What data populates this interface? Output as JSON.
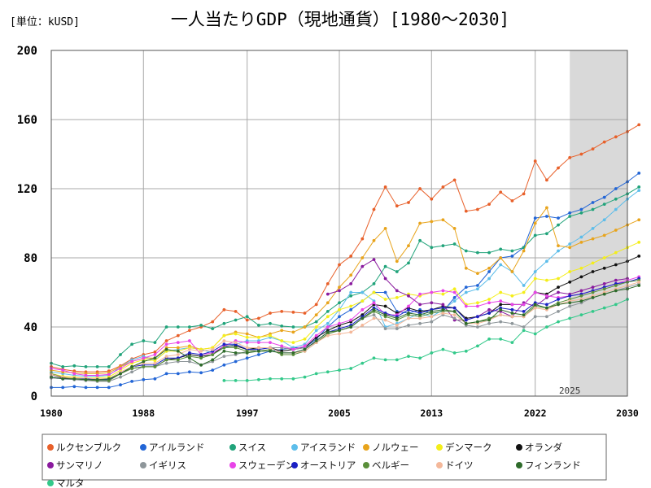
{
  "chart_data": {
    "type": "line",
    "title": "一人当たりGDP（現地通貨）[1980～2030]",
    "unit_label": "[単位：kUSD]",
    "xlim": [
      1980,
      2030
    ],
    "ylim": [
      0,
      200
    ],
    "x_ticks": [
      1980,
      1988,
      1997,
      2005,
      2013,
      2022,
      2030
    ],
    "y_ticks": [
      0,
      40,
      80,
      120,
      160,
      200
    ],
    "forecast_start": 2025,
    "forecast_label": "2025",
    "grid": true,
    "legend_position": "bottom",
    "series": [
      {
        "name": "ルクセンブルク",
        "color": "#e8602a",
        "start": 1980,
        "values": [
          17,
          15.5,
          14.5,
          14,
          14,
          14.5,
          17.5,
          21.5,
          24,
          25.5,
          32,
          35,
          38,
          40,
          43,
          50,
          49,
          44,
          45,
          48,
          49,
          48.5,
          48,
          53,
          65,
          76,
          81,
          91,
          108,
          121,
          110,
          112,
          120,
          114,
          121,
          125,
          107,
          108,
          111,
          118,
          113,
          117,
          136,
          125,
          132,
          138,
          140,
          143,
          147,
          150,
          153,
          157
        ]
      },
      {
        "name": "アイルランド",
        "color": "#2265d6",
        "start": 1980,
        "values": [
          5,
          5,
          5.5,
          5,
          5,
          5,
          6.5,
          8.5,
          9.5,
          10,
          13,
          13,
          14,
          13.5,
          15,
          18,
          20,
          22,
          24,
          26,
          27,
          28,
          28,
          33,
          40,
          46,
          50,
          55,
          60,
          60,
          49,
          48,
          50,
          48,
          49,
          57,
          63,
          64,
          72,
          80,
          81,
          86,
          103,
          104,
          103,
          106,
          108,
          112,
          115,
          120,
          124,
          129
        ]
      },
      {
        "name": "スイス",
        "color": "#20a37a",
        "start": 1980,
        "values": [
          19,
          17,
          17.5,
          17,
          17,
          17,
          24,
          30,
          32,
          31,
          40,
          40,
          40,
          41,
          39,
          42,
          44,
          46,
          41,
          42,
          40.5,
          40,
          40,
          43,
          49,
          54,
          58,
          60,
          65,
          75,
          72,
          77,
          90,
          86,
          87,
          88,
          84,
          83,
          83,
          85,
          84,
          86,
          93,
          94,
          99,
          104,
          106,
          108,
          111,
          114,
          117,
          121
        ]
      },
      {
        "name": "アイスランド",
        "color": "#5cbdea",
        "start": 1980,
        "values": [
          14,
          13,
          12,
          11.5,
          11.5,
          12,
          17,
          21,
          23,
          21,
          26,
          27,
          28,
          27,
          25,
          28,
          30,
          32,
          32,
          34,
          32,
          28,
          30,
          38,
          42,
          50,
          60,
          60,
          55,
          40,
          42,
          45,
          48,
          46,
          50,
          55,
          60,
          62,
          68,
          76,
          72,
          64,
          72,
          78,
          84,
          88,
          92,
          97,
          102,
          108,
          114,
          119
        ]
      },
      {
        "name": "ノルウェー",
        "color": "#e8a41c",
        "start": 1980,
        "values": [
          15,
          14,
          13.5,
          13,
          13,
          13.5,
          17,
          20,
          22,
          22,
          28,
          28,
          29,
          27,
          28,
          35,
          37,
          36,
          34,
          36,
          38,
          37,
          40,
          47,
          54,
          63,
          70,
          80,
          90,
          97,
          78,
          87,
          100,
          101,
          102,
          97,
          74,
          71,
          74,
          80,
          72,
          84,
          100,
          109,
          87,
          86,
          89,
          91,
          93,
          96,
          99,
          102
        ]
      },
      {
        "name": "デンマーク",
        "color": "#f4ee1a",
        "start": 1980,
        "values": [
          13,
          11.5,
          11,
          10.5,
          10.5,
          11,
          15,
          19,
          21,
          20.5,
          26,
          26,
          28,
          27,
          28,
          35,
          36,
          34,
          34,
          35,
          32,
          31,
          33,
          40,
          46,
          50,
          52,
          55,
          60,
          56,
          57,
          59,
          58,
          60,
          59,
          62,
          53,
          54,
          56,
          60,
          58,
          60,
          68,
          67,
          68,
          72,
          74,
          77,
          80,
          83,
          86,
          89
        ]
      },
      {
        "name": "オランダ",
        "color": "#111111",
        "start": 1980,
        "values": [
          12.5,
          10.5,
          10,
          9.5,
          9,
          9,
          13,
          16,
          17,
          17,
          21,
          22,
          24,
          23,
          24,
          29,
          29,
          27,
          28,
          28,
          26,
          27,
          28,
          34,
          38,
          41,
          43,
          47,
          53,
          52,
          48,
          51,
          49,
          50,
          52,
          51,
          45,
          46,
          48,
          53,
          53,
          53,
          60,
          59,
          63,
          66,
          69,
          72,
          74,
          76,
          78,
          81
        ]
      },
      {
        "name": "サンマリノ",
        "color": "#8a1a9e",
        "start": null,
        "values": [
          [
            2004,
            59
          ],
          [
            2005,
            61
          ],
          [
            2006,
            65
          ],
          [
            2007,
            75
          ],
          [
            2008,
            79
          ],
          [
            2009,
            68
          ],
          [
            2010,
            61
          ],
          [
            2011,
            58
          ],
          [
            2012,
            53
          ],
          [
            2013,
            54
          ],
          [
            2014,
            53
          ],
          [
            2015,
            44
          ],
          [
            2016,
            44
          ],
          [
            2017,
            46
          ],
          [
            2018,
            50
          ],
          [
            2019,
            49
          ],
          [
            2020,
            46
          ],
          [
            2021,
            54
          ],
          [
            2022,
            52
          ],
          [
            2023,
            57
          ],
          [
            2024,
            60
          ],
          [
            2025,
            59
          ],
          [
            2026,
            61
          ],
          [
            2027,
            63
          ],
          [
            2028,
            65
          ],
          [
            2029,
            67
          ],
          [
            2030,
            68
          ]
        ]
      },
      {
        "name": "イギリス",
        "color": "#8e969a",
        "start": 1980,
        "values": [
          10.5,
          10,
          9.5,
          9,
          8.5,
          8.5,
          11,
          14,
          17,
          17,
          19,
          20,
          20,
          18,
          20,
          23,
          24,
          26,
          27,
          28,
          28,
          27,
          28,
          31,
          36,
          38,
          40,
          45,
          47,
          39,
          39,
          41,
          42,
          43,
          47,
          45,
          41,
          40,
          42,
          43,
          42,
          40,
          46,
          46,
          49,
          52,
          54,
          57,
          59,
          61,
          63,
          65
        ]
      },
      {
        "name": "スウェーデン",
        "color": "#e844e8",
        "start": 1980,
        "values": [
          16,
          15,
          13,
          12,
          12,
          12.5,
          16,
          20,
          22,
          24,
          30,
          31,
          32,
          24,
          25,
          29,
          32,
          31,
          31,
          31,
          29,
          27,
          29,
          35,
          40,
          42,
          44,
          50,
          54,
          47,
          47,
          52,
          59,
          60,
          61,
          60,
          52,
          52,
          54,
          55,
          53,
          53,
          60,
          58,
          57,
          58,
          59,
          61,
          63,
          65,
          67,
          69
        ]
      },
      {
        "name": "オーストリア",
        "color": "#1a20c4",
        "start": 1980,
        "values": [
          11,
          10,
          10,
          10,
          9.5,
          9.5,
          13,
          17,
          18,
          18,
          22,
          22,
          25,
          24,
          26,
          30,
          30,
          27,
          27,
          28,
          25,
          25,
          27,
          32,
          37,
          39,
          41,
          46,
          51,
          48,
          46,
          50,
          48,
          50,
          51,
          51,
          44,
          46,
          48,
          51,
          50,
          49,
          54,
          53,
          56,
          58,
          59,
          61,
          63,
          65,
          66,
          68
        ]
      },
      {
        "name": "ベルギー",
        "color": "#5a8f3a",
        "start": 1980,
        "values": [
          13,
          11,
          10,
          9.5,
          9,
          9,
          13,
          16,
          17,
          17,
          21,
          21,
          23,
          22,
          24,
          28,
          28,
          26,
          26,
          27,
          24,
          24,
          26,
          31,
          36,
          38,
          40,
          45,
          49,
          46,
          44,
          47,
          46,
          48,
          49,
          49,
          42,
          43,
          45,
          47,
          46,
          46,
          52,
          51,
          54,
          56,
          58,
          60,
          62,
          64,
          66,
          67
        ]
      },
      {
        "name": "ドイツ",
        "color": "#f4b89a",
        "start": 1980,
        "values": [
          12.5,
          11,
          10.5,
          10.5,
          10,
          10,
          14,
          17,
          19,
          19,
          23,
          24,
          27,
          26,
          27,
          32,
          31,
          28,
          28,
          28,
          25,
          25,
          26,
          31,
          35,
          36,
          37,
          41,
          45,
          44,
          41,
          45,
          45,
          46,
          48,
          47,
          42,
          42,
          44,
          47,
          46,
          46,
          51,
          50,
          53,
          55,
          56,
          58,
          60,
          62,
          64,
          66
        ]
      },
      {
        "name": "フィンランド",
        "color": "#2e6b2a",
        "start": 1980,
        "values": [
          11,
          10,
          10,
          9.5,
          9.5,
          10,
          13,
          17,
          20,
          22,
          27,
          26,
          22,
          18,
          21,
          26,
          25,
          25,
          26,
          26,
          25,
          25,
          27,
          32,
          37,
          38,
          40,
          45,
          50,
          47,
          45,
          48,
          47,
          49,
          50,
          49,
          42,
          43,
          44,
          50,
          48,
          47,
          53,
          51,
          53,
          54,
          55,
          57,
          59,
          61,
          62,
          64
        ]
      },
      {
        "name": "マルタ",
        "color": "#33c98a",
        "start": null,
        "values": [
          [
            1995,
            9
          ],
          [
            1996,
            9
          ],
          [
            1997,
            9
          ],
          [
            1998,
            9.5
          ],
          [
            1999,
            10
          ],
          [
            2000,
            10
          ],
          [
            2001,
            10
          ],
          [
            2002,
            11
          ],
          [
            2003,
            13
          ],
          [
            2004,
            14
          ],
          [
            2005,
            15
          ],
          [
            2006,
            16
          ],
          [
            2007,
            19
          ],
          [
            2008,
            22
          ],
          [
            2009,
            21
          ],
          [
            2010,
            21
          ],
          [
            2011,
            23
          ],
          [
            2012,
            22
          ],
          [
            2013,
            25
          ],
          [
            2014,
            27
          ],
          [
            2015,
            25
          ],
          [
            2016,
            26
          ],
          [
            2017,
            29
          ],
          [
            2018,
            33
          ],
          [
            2019,
            33
          ],
          [
            2020,
            31
          ],
          [
            2021,
            38
          ],
          [
            2022,
            36
          ],
          [
            2023,
            40
          ],
          [
            2024,
            43
          ],
          [
            2025,
            45
          ],
          [
            2026,
            47
          ],
          [
            2027,
            49
          ],
          [
            2028,
            51
          ],
          [
            2029,
            53
          ],
          [
            2030,
            56
          ]
        ]
      }
    ]
  }
}
